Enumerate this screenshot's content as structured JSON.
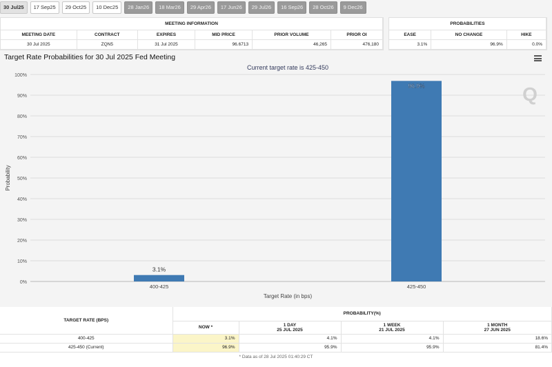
{
  "tabs": [
    {
      "label": "30 Jul25",
      "state": "active"
    },
    {
      "label": "17 Sep25",
      "state": "normal"
    },
    {
      "label": "29 Oct25",
      "state": "normal"
    },
    {
      "label": "10 Dec25",
      "state": "normal"
    },
    {
      "label": "28 Jan26",
      "state": "dim"
    },
    {
      "label": "18 Mar26",
      "state": "dim"
    },
    {
      "label": "29 Apr26",
      "state": "dim"
    },
    {
      "label": "17 Jun26",
      "state": "dim"
    },
    {
      "label": "29 Jul26",
      "state": "dim"
    },
    {
      "label": "16 Sep26",
      "state": "dim"
    },
    {
      "label": "28 Oct26",
      "state": "dim"
    },
    {
      "label": "9 Dec26",
      "state": "dim"
    }
  ],
  "meeting_info": {
    "caption": "MEETING INFORMATION",
    "headers": {
      "meeting_date": "MEETING DATE",
      "contract": "CONTRACT",
      "expires": "EXPIRES",
      "mid_price": "MID PRICE",
      "prior_volume": "PRIOR VOLUME",
      "prior_oi": "PRIOR OI"
    },
    "row": {
      "meeting_date": "30 Jul 2025",
      "contract": "ZQN5",
      "expires": "31 Jul 2025",
      "mid_price": "96.6713",
      "prior_volume": "46,265",
      "prior_oi": "476,180"
    }
  },
  "probabilities": {
    "caption": "PROBABILITIES",
    "headers": {
      "ease": "EASE",
      "no_change": "NO CHANGE",
      "hike": "HIKE"
    },
    "row": {
      "ease": "3.1%",
      "no_change": "96.9%",
      "hike": "0.0%"
    }
  },
  "chart": {
    "title": "Target Rate Probabilities for 30 Jul 2025 Fed Meeting",
    "watermark": "Q"
  },
  "chart_data": {
    "type": "bar",
    "title": "Current target rate is 425-450",
    "categories": [
      "400-425",
      "425-450"
    ],
    "values": [
      3.1,
      96.9
    ],
    "value_labels": [
      "3.1%",
      "96.9%"
    ],
    "xlabel": "Target Rate (in bps)",
    "ylabel": "Probability",
    "ylim": [
      0,
      100
    ],
    "yticks": [
      0,
      10,
      20,
      30,
      40,
      50,
      60,
      70,
      80,
      90,
      100
    ],
    "ytick_labels": [
      "0%",
      "10%",
      "20%",
      "30%",
      "40%",
      "50%",
      "60%",
      "70%",
      "80%",
      "90%",
      "100%"
    ],
    "grid": true,
    "bar_color": "#3f7ab3"
  },
  "prob_table": {
    "target_header": "TARGET RATE (BPS)",
    "probability_header": "PROBABILITY(%)",
    "columns": [
      {
        "title": "NOW *",
        "date": ""
      },
      {
        "title": "1 DAY",
        "date": "25 JUL 2025"
      },
      {
        "title": "1 WEEK",
        "date": "21 JUL 2025"
      },
      {
        "title": "1 MONTH",
        "date": "27 JUN 2025"
      }
    ],
    "rows": [
      {
        "rate": "400-425",
        "values": [
          "3.1%",
          "4.1%",
          "4.1%",
          "18.6%"
        ]
      },
      {
        "rate": "425-450 (Current)",
        "values": [
          "96.9%",
          "95.9%",
          "95.9%",
          "81.4%"
        ]
      }
    ],
    "footnote": "* Data as of 28 Jul 2025 01:40:29 CT"
  }
}
